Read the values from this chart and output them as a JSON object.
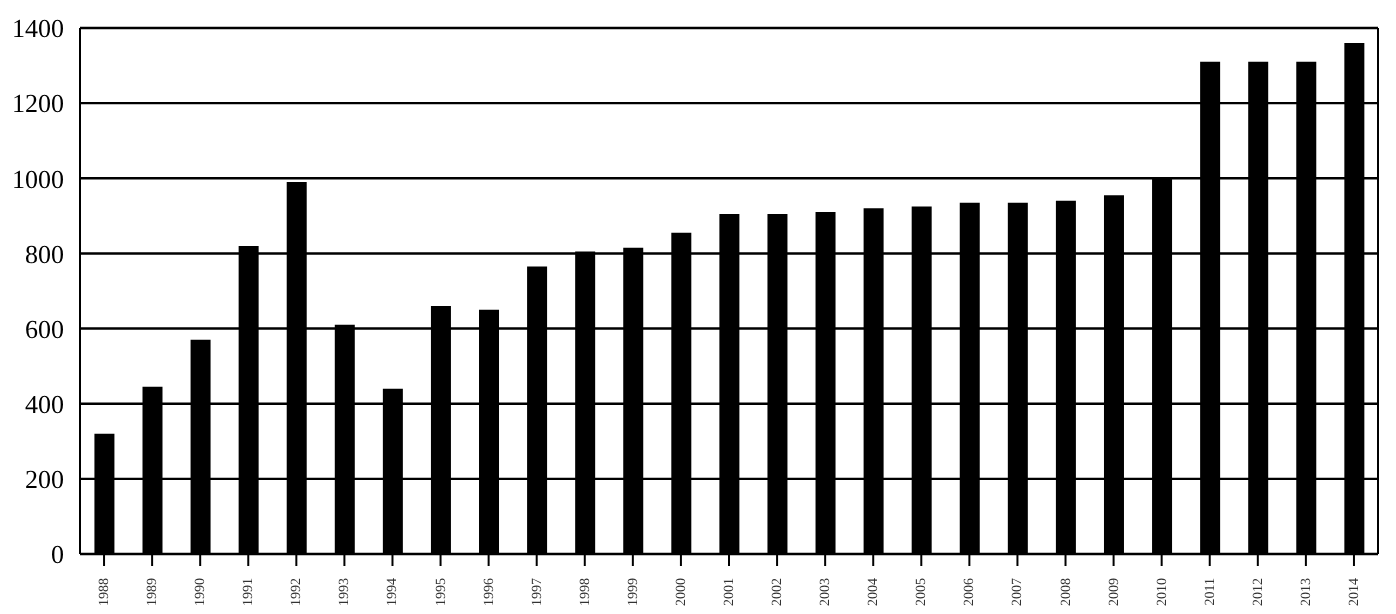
{
  "chart_data": {
    "type": "bar",
    "categories": [
      "1988",
      "1989",
      "1990",
      "1991",
      "1992",
      "1993",
      "1994",
      "1995",
      "1996",
      "1997",
      "1998",
      "1999",
      "2000",
      "2001",
      "2002",
      "2003",
      "2004",
      "2005",
      "2006",
      "2007",
      "2008",
      "2009",
      "2010",
      "2011",
      "2012",
      "2013",
      "2014"
    ],
    "values": [
      320,
      445,
      570,
      820,
      990,
      610,
      440,
      660,
      650,
      765,
      805,
      815,
      855,
      905,
      905,
      910,
      920,
      925,
      935,
      935,
      940,
      955,
      1000,
      1310,
      1310,
      1310,
      1360
    ],
    "color": "#000000",
    "ylim": [
      0,
      1400
    ],
    "yticks": [
      0,
      200,
      400,
      600,
      800,
      1000,
      1200,
      1400
    ],
    "grid": "y"
  }
}
